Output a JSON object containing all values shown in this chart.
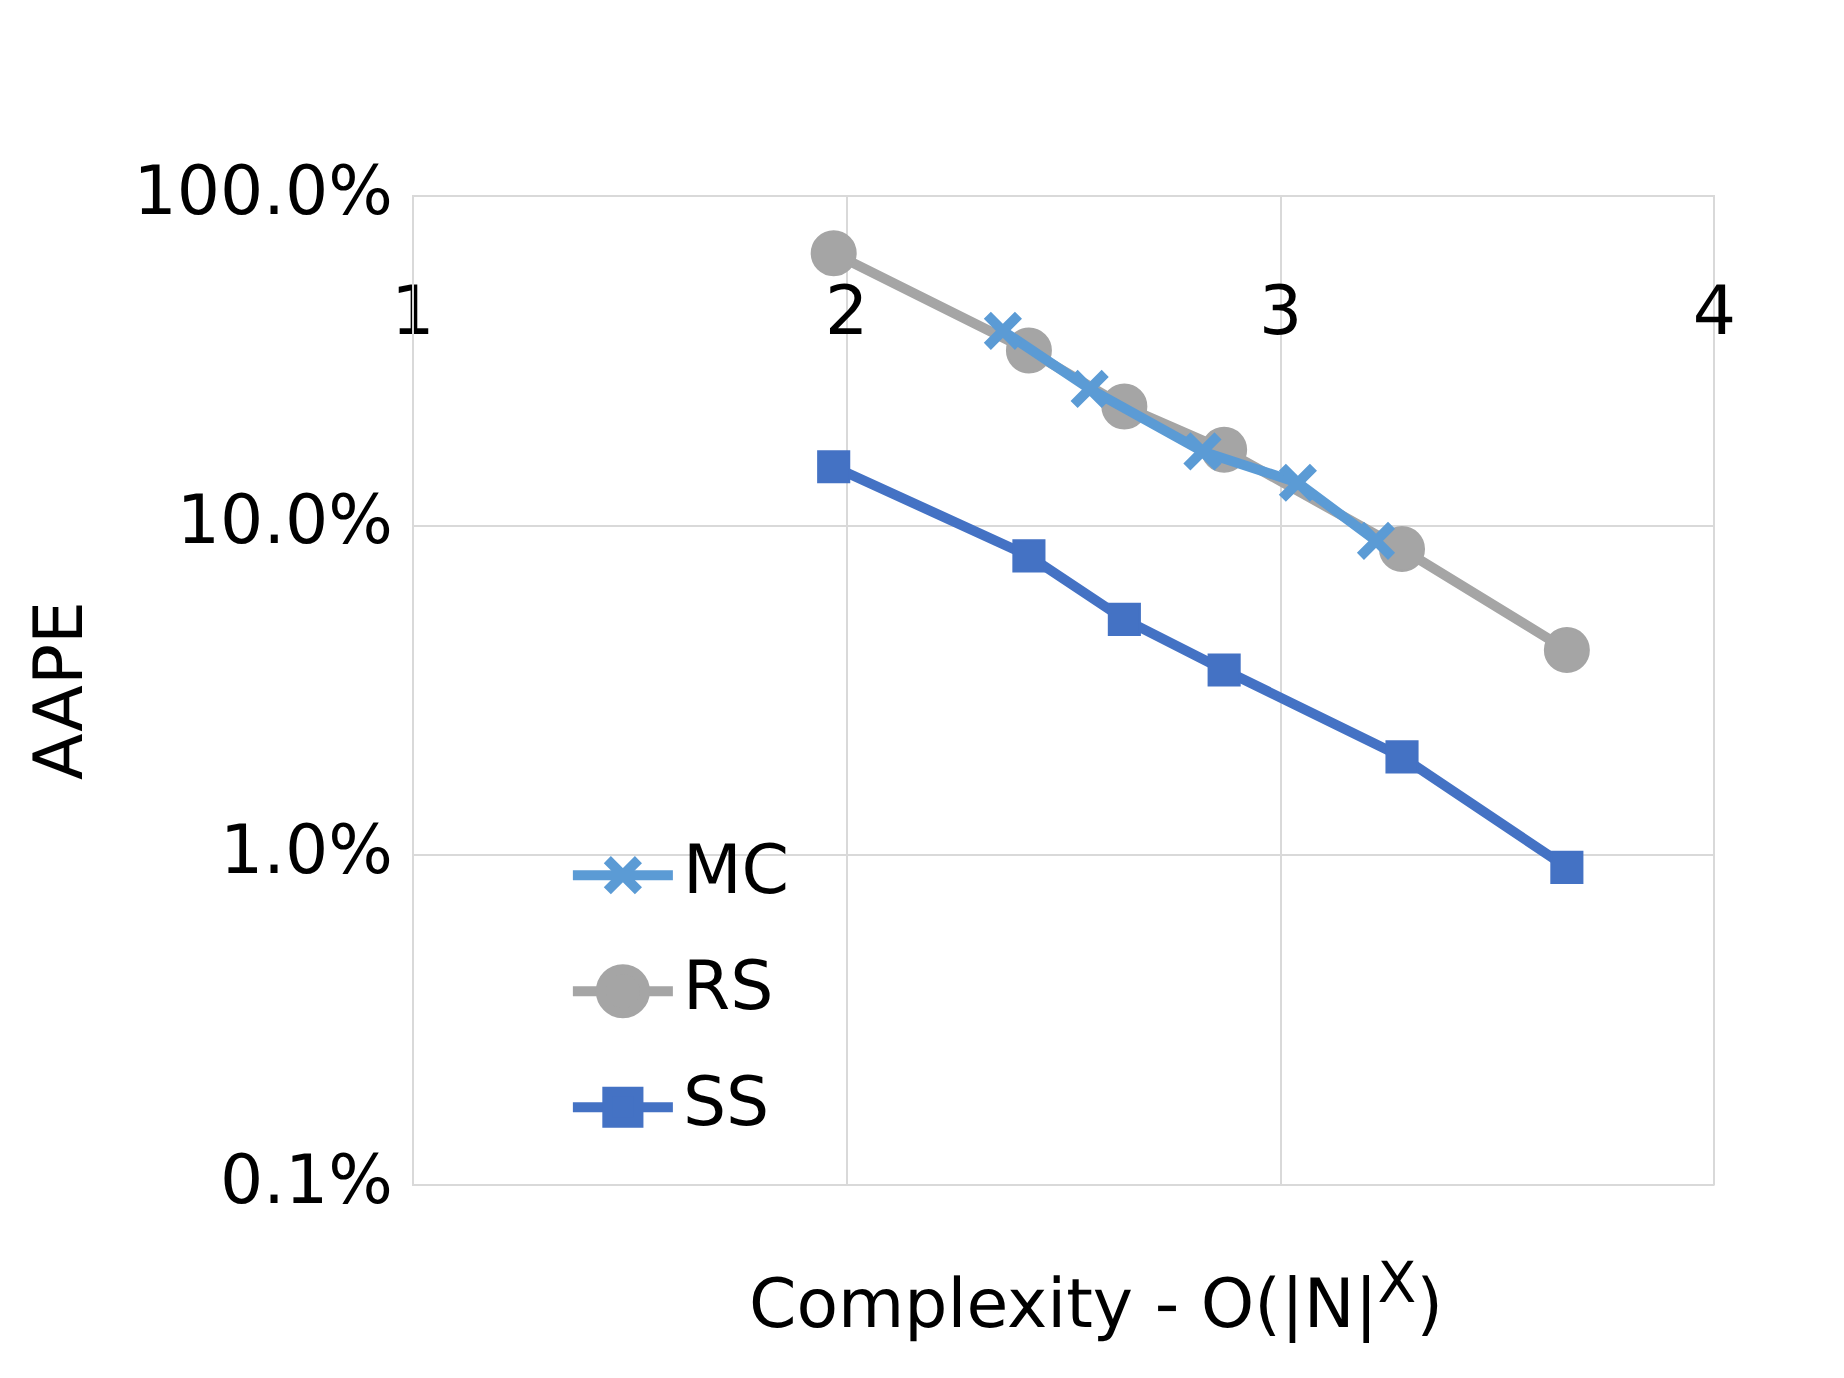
{
  "chart_data": {
    "type": "line",
    "xlabel": "Complexity - O(|N|$^{X}$)",
    "ylabel": "AAPE",
    "log": "y",
    "grid": true,
    "legend": "bottom left",
    "xlim": [
      1,
      4
    ],
    "xticks": [
      1,
      2,
      3,
      4
    ],
    "ylim": [
      0.1,
      100
    ],
    "yticks": [
      {
        "value": 0.1,
        "label": "0.1%"
      },
      {
        "value": 1,
        "label": "1.0%"
      },
      {
        "value": 10,
        "label": "10.0%"
      },
      {
        "value": 100,
        "label": "100.0%"
      }
    ],
    "series": [
      {
        "name": "MC",
        "color": "#5b9bd5",
        "marker": "cross",
        "x": [
          2.36,
          2.56,
          2.82,
          3.04,
          3.22
        ],
        "values": [
          39,
          26,
          16.8,
          13.5,
          9
        ]
      },
      {
        "name": "RS",
        "color": "#a5a5a5",
        "marker": "circle",
        "x": [
          1.97,
          2.42,
          2.64,
          2.87,
          3.28,
          3.66
        ],
        "values": [
          67,
          34,
          23,
          17,
          8.5,
          4.2
        ]
      },
      {
        "name": "SS",
        "color": "#4472c4",
        "marker": "square",
        "x": [
          1.97,
          2.42,
          2.64,
          2.87,
          3.28,
          3.66
        ],
        "values": [
          15.1,
          8.1,
          5.2,
          3.65,
          1.99,
          0.92
        ]
      }
    ]
  }
}
